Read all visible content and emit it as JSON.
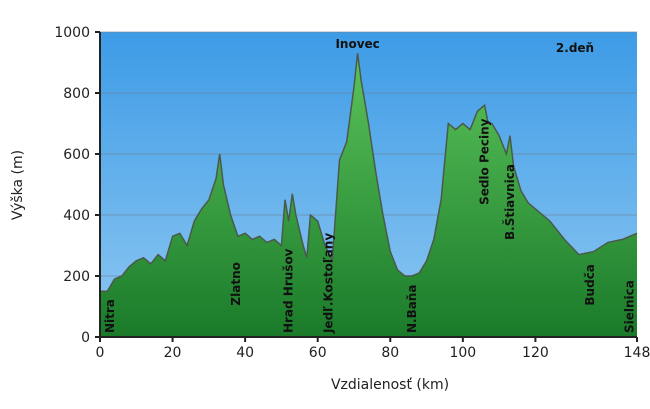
{
  "chart_data": {
    "type": "area",
    "x_label": "Vzdialenosť   (km)",
    "y_label": "Výška (m)",
    "day_label": "2.deň",
    "peak": {
      "text": "Inovec",
      "x": 71
    },
    "annotations": [
      {
        "text": "Nitra",
        "x": 2.7,
        "y": 13
      },
      {
        "text": "Zlatno",
        "x": 37.5,
        "y": 103
      },
      {
        "text": "Hrad Hrušov",
        "x": 52,
        "y": 13
      },
      {
        "text": "Jedľ.Kostoľany",
        "x": 63,
        "y": 13
      },
      {
        "text": "N.Baňa",
        "x": 86,
        "y": 13
      },
      {
        "text": "Sedlo Peciny",
        "x": 106,
        "y": 433
      },
      {
        "text": "B.Štiavnica",
        "x": 113,
        "y": 318
      },
      {
        "text": "Budča",
        "x": 135,
        "y": 103
      },
      {
        "text": "Sielnica",
        "x": 146,
        "y": 13
      }
    ],
    "x": [
      0,
      2,
      4,
      6,
      8,
      10,
      12,
      14,
      16,
      18,
      20,
      22,
      24,
      26,
      28,
      30,
      32,
      33,
      34,
      36,
      38,
      40,
      42,
      44,
      46,
      48,
      50,
      51,
      52,
      53,
      54,
      56,
      57,
      58,
      60,
      62,
      64,
      66,
      68,
      70,
      71,
      72,
      74,
      76,
      78,
      80,
      82,
      84,
      86,
      88,
      90,
      92,
      94,
      96,
      98,
      100,
      102,
      104,
      106,
      107,
      108,
      110,
      112,
      113,
      114,
      116,
      118,
      120,
      124,
      128,
      132,
      136,
      140,
      144,
      148
    ],
    "y": [
      150,
      150,
      190,
      200,
      230,
      250,
      260,
      240,
      270,
      250,
      330,
      340,
      300,
      380,
      420,
      450,
      520,
      600,
      500,
      400,
      330,
      340,
      320,
      330,
      310,
      320,
      300,
      450,
      380,
      470,
      400,
      300,
      260,
      400,
      380,
      300,
      250,
      580,
      640,
      820,
      930,
      840,
      700,
      540,
      400,
      280,
      220,
      200,
      200,
      210,
      250,
      320,
      450,
      700,
      680,
      700,
      680,
      740,
      760,
      700,
      700,
      660,
      600,
      660,
      560,
      480,
      440,
      420,
      380,
      320,
      270,
      280,
      310,
      320,
      340
    ],
    "color": "#2e9e3c",
    "xlim": [
      0,
      148
    ],
    "ylim": [
      0,
      1000
    ],
    "xticks": [
      0,
      20,
      40,
      60,
      80,
      100,
      120,
      148
    ],
    "yticks": [
      0,
      200,
      400,
      600,
      800,
      1000
    ],
    "grid": true
  }
}
